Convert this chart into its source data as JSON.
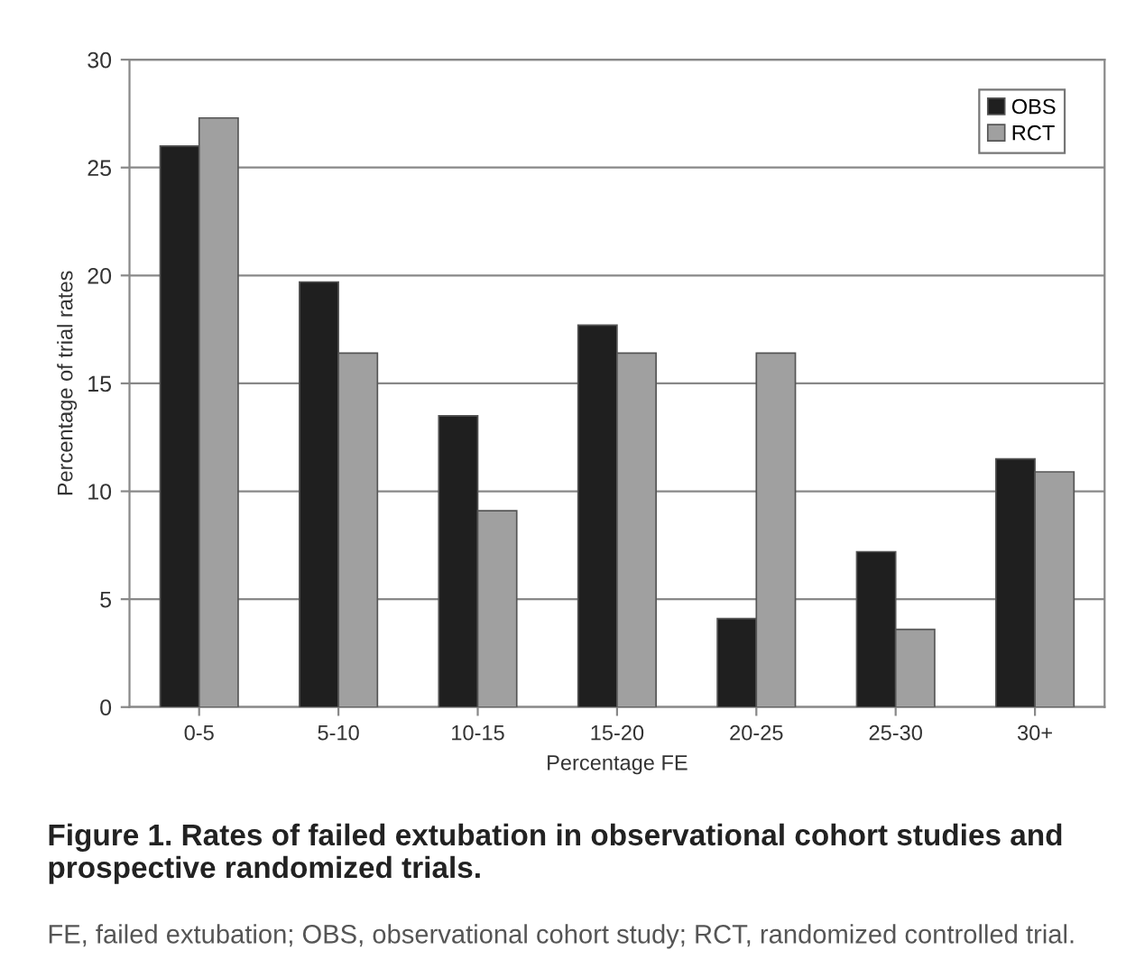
{
  "chart_data": {
    "type": "bar",
    "title": "Figure 1. Rates of failed extubation in observational cohort studies and prospective randomized trials.",
    "annotations": [
      "FE, failed extubation; OBS, observational cohort study; RCT, randomized controlled trial."
    ],
    "xlabel": "Percentage FE",
    "ylabel": "Percentage of trial rates",
    "categories": [
      "0-5",
      "5-10",
      "10-15",
      "15-20",
      "20-25",
      "25-30",
      "30+"
    ],
    "series": [
      {
        "name": "OBS",
        "color": "#1f1f1f",
        "values": [
          26.0,
          19.7,
          13.5,
          17.7,
          4.1,
          7.2,
          11.5
        ]
      },
      {
        "name": "RCT",
        "color": "#a0a0a0",
        "values": [
          27.3,
          16.4,
          9.1,
          16.4,
          16.4,
          3.6,
          10.9
        ]
      }
    ],
    "ylim": [
      0,
      30
    ],
    "yticks": [
      0,
      5,
      10,
      15,
      20,
      25,
      30
    ],
    "grid": "y",
    "legend": "top right"
  }
}
